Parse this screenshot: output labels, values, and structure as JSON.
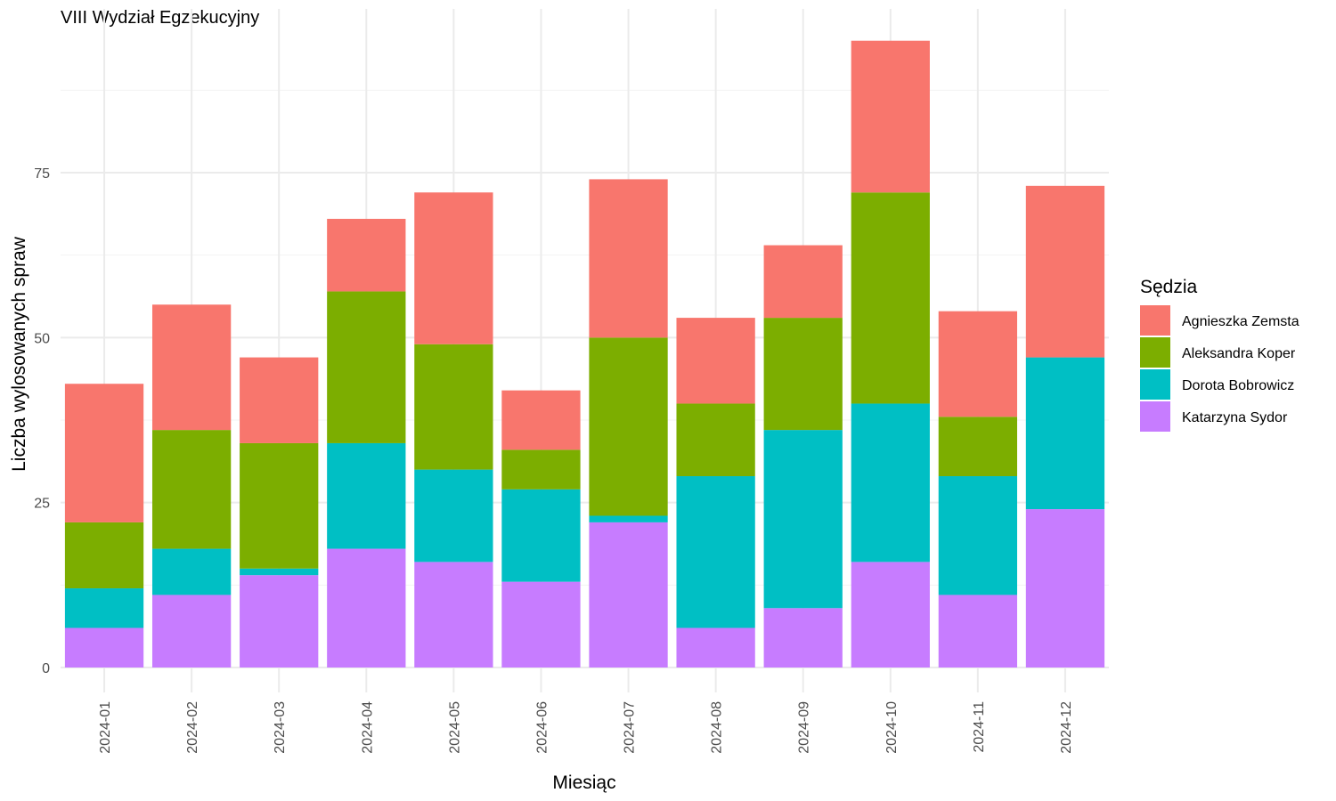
{
  "chart_data": {
    "type": "bar",
    "stacked": true,
    "title": "VIII Wydział Egzekucyjny",
    "xlabel": "Miesiąc",
    "ylabel": "Liczba wylosowanych spraw",
    "ylim": [
      0,
      100
    ],
    "yticks": [
      0,
      25,
      50,
      75
    ],
    "grid": true,
    "legend": {
      "title": "Sędzia",
      "position": "right"
    },
    "categories": [
      "2024-01",
      "2024-02",
      "2024-03",
      "2024-04",
      "2024-05",
      "2024-06",
      "2024-07",
      "2024-08",
      "2024-09",
      "2024-10",
      "2024-11",
      "2024-12"
    ],
    "series": [
      {
        "name": "Katarzyna Sydor",
        "color": "#C77CFF",
        "values": [
          6,
          11,
          14,
          18,
          16,
          13,
          22,
          6,
          9,
          16,
          11,
          24
        ]
      },
      {
        "name": "Dorota Bobrowicz",
        "color": "#00BFC4",
        "values": [
          6,
          7,
          1,
          16,
          14,
          14,
          1,
          23,
          27,
          24,
          18,
          23
        ]
      },
      {
        "name": "Aleksandra Koper",
        "color": "#7CAE00",
        "values": [
          10,
          18,
          19,
          23,
          19,
          6,
          27,
          11,
          17,
          32,
          9,
          0
        ]
      },
      {
        "name": "Agnieszka Zemsta",
        "color": "#F8766D",
        "values": [
          21,
          19,
          13,
          11,
          23,
          9,
          24,
          13,
          11,
          23,
          16,
          26
        ]
      }
    ],
    "legend_order": [
      "Agnieszka Zemsta",
      "Aleksandra Koper",
      "Dorota Bobrowicz",
      "Katarzyna Sydor"
    ]
  }
}
